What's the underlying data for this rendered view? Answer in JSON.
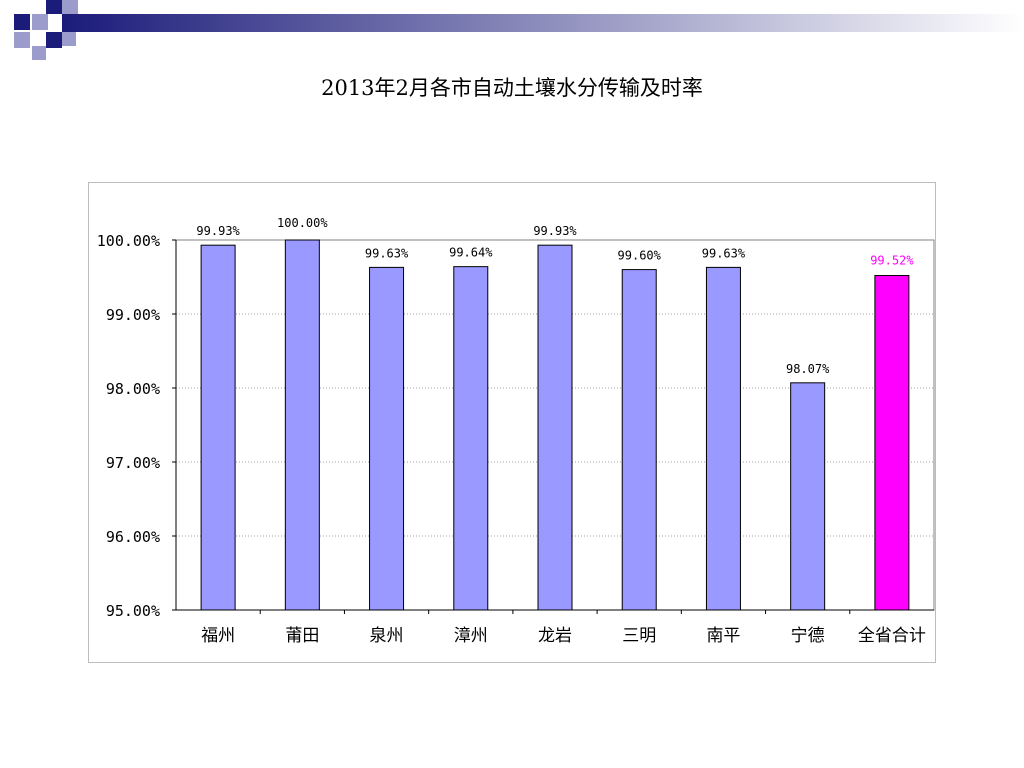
{
  "slide": {
    "title": "2013年2月各市自动土壤水分传输及时率"
  },
  "colors": {
    "bar_default": "#9999ff",
    "bar_highlight": "#ff00ff",
    "label_highlight": "#ff00ff",
    "header_gradient_start": "#1b1b7a",
    "header_gradient_end": "#ffffff",
    "decor_dark": "#1b1b7a",
    "decor_light": "#9c9ccc"
  },
  "chart_data": {
    "type": "bar",
    "title": "",
    "xlabel": "",
    "ylabel": "",
    "ylim": [
      95,
      100
    ],
    "yticks": [
      "95.00%",
      "96.00%",
      "97.00%",
      "98.00%",
      "99.00%",
      "100.00%"
    ],
    "ytick_values": [
      95,
      96,
      97,
      98,
      99,
      100
    ],
    "grid": true,
    "legend": "none",
    "categories": [
      "福州",
      "莆田",
      "泉州",
      "漳州",
      "龙岩",
      "三明",
      "南平",
      "宁德",
      "全省合计"
    ],
    "values": [
      99.93,
      100.0,
      99.63,
      99.64,
      99.93,
      99.6,
      99.63,
      98.07,
      99.52
    ],
    "data_labels": [
      "99.93%",
      "100.00%",
      "99.63%",
      "99.64%",
      "99.93%",
      "99.60%",
      "99.63%",
      "98.07%",
      "99.52%"
    ],
    "highlight_index": 8
  }
}
